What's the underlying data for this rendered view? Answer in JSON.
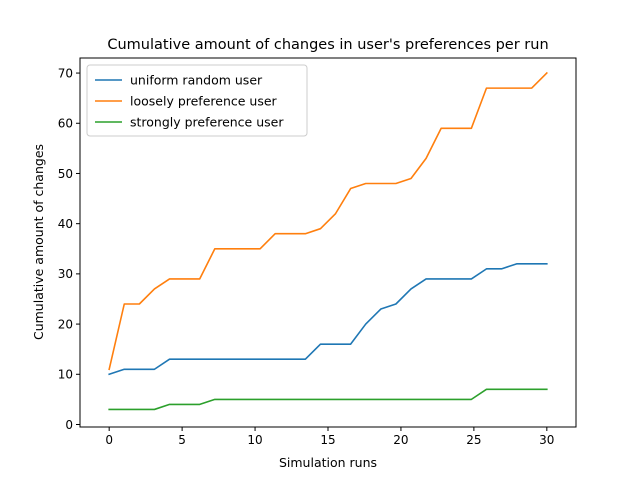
{
  "chart_data": {
    "type": "line",
    "title": "Cumulative amount of changes in user's preferences per run",
    "xlabel": "Simulation runs",
    "ylabel": "Cumulative amount of changes",
    "xlim": [
      -2,
      32
    ],
    "ylim": [
      -0.5,
      73
    ],
    "xticks": [
      0,
      5,
      10,
      15,
      20,
      25,
      30
    ],
    "yticks": [
      0,
      10,
      20,
      30,
      40,
      50,
      60,
      70
    ],
    "grid": false,
    "legend_position": "upper-left",
    "x": [
      0,
      1.0345,
      2.069,
      3.1034,
      4.1379,
      5.1724,
      6.2069,
      7.2414,
      8.2759,
      9.3103,
      10.3448,
      11.3793,
      12.4138,
      13.4483,
      14.4828,
      15.5172,
      16.5517,
      17.5862,
      18.6207,
      19.6552,
      20.6897,
      21.7241,
      22.7586,
      23.7931,
      24.8276,
      25.8621,
      26.8966,
      27.931,
      28.9655,
      30
    ],
    "series": [
      {
        "name": "uniform random user",
        "color": "#1f77b4",
        "values": [
          10,
          11,
          11,
          11,
          13,
          13,
          13,
          13,
          13,
          13,
          13,
          13,
          13,
          13,
          16,
          16,
          16,
          20,
          23,
          24,
          27,
          29,
          29,
          29,
          29,
          31,
          31,
          32,
          32,
          32
        ]
      },
      {
        "name": "loosely preference user",
        "color": "#ff7f0e",
        "values": [
          11,
          24,
          24,
          27,
          29,
          29,
          29,
          35,
          35,
          35,
          35,
          38,
          38,
          38,
          39,
          42,
          47,
          48,
          48,
          48,
          49,
          53,
          59,
          59,
          59,
          67,
          67,
          67,
          67,
          70
        ]
      },
      {
        "name": "strongly preference user",
        "color": "#2ca02c",
        "values": [
          3,
          3,
          3,
          3,
          4,
          4,
          4,
          5,
          5,
          5,
          5,
          5,
          5,
          5,
          5,
          5,
          5,
          5,
          5,
          5,
          5,
          5,
          5,
          5,
          5,
          7,
          7,
          7,
          7,
          7
        ]
      }
    ]
  }
}
